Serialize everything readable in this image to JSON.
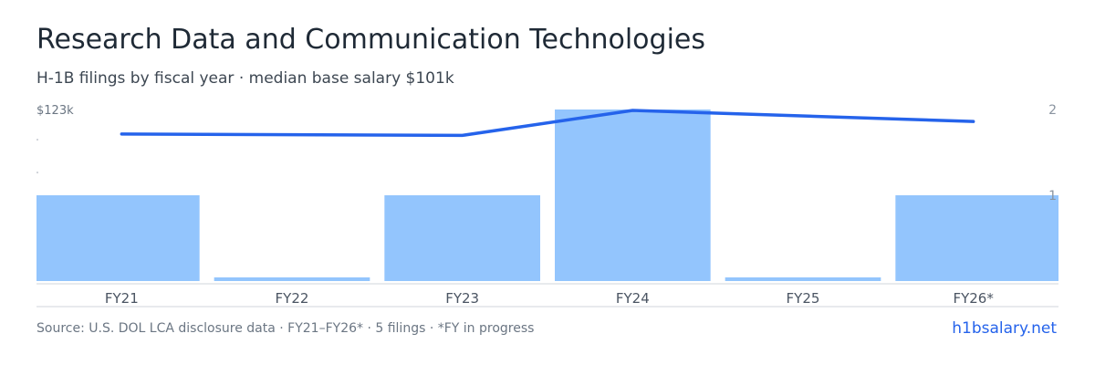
{
  "title": "Research Data and Communication Technologies",
  "subtitle": "H-1B filings by fiscal year · median base salary $101k",
  "chart_data": {
    "type": "bar",
    "categories": [
      "FY21",
      "FY22",
      "FY23",
      "FY24",
      "FY25",
      "FY26*"
    ],
    "series": [
      {
        "kind": "bar",
        "axis": "right",
        "values": [
          1,
          0,
          1,
          2,
          0,
          1
        ]
      },
      {
        "kind": "line",
        "axis": "left",
        "values": [
          106,
          null,
          105,
          123,
          null,
          115
        ]
      }
    ],
    "left_axis": {
      "label": "$123k",
      "max": 123,
      "min": 0
    },
    "right_axis": {
      "ticks": [
        "1",
        "2"
      ],
      "max": 2,
      "min": 0
    },
    "grid": false,
    "colors": {
      "bar": "#93c5fd",
      "line": "#2563eb",
      "axis": "#d1d5db"
    }
  },
  "footer": {
    "source": "Source: U.S. DOL LCA disclosure data · FY21–FY26* · 5 filings · *FY in progress",
    "site": "h1bsalary.net"
  }
}
